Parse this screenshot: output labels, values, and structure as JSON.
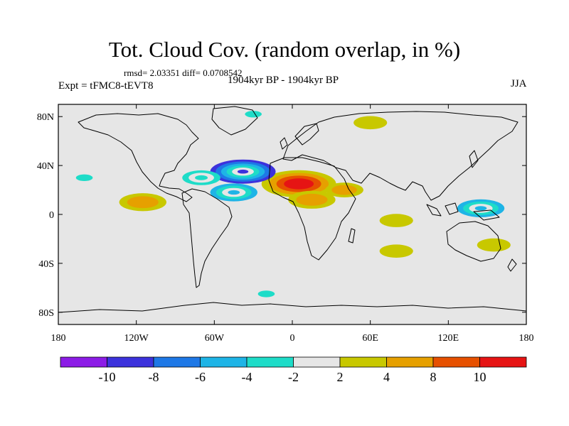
{
  "chart_data": {
    "type": "heatmap",
    "title": "Tot. Cloud Cov. (random overlap, in %)",
    "stats": "rmsd= 2.03351 diff= 0.0708542",
    "experiment": "Expt = tFMC8-tEVT8",
    "period": "1904kyr BP - 1904kyr BP",
    "season": "JJA",
    "projection": "cylindrical equidistant",
    "xlim": [
      -180,
      180
    ],
    "ylim": [
      -90,
      90
    ],
    "x_ticks": [
      {
        "lon": -180,
        "label": "180"
      },
      {
        "lon": -120,
        "label": "120W"
      },
      {
        "lon": -60,
        "label": "60W"
      },
      {
        "lon": 0,
        "label": "0"
      },
      {
        "lon": 60,
        "label": "60E"
      },
      {
        "lon": 120,
        "label": "120E"
      },
      {
        "lon": 180,
        "label": "180"
      }
    ],
    "y_ticks": [
      {
        "lat": 80,
        "label": "80N"
      },
      {
        "lat": 40,
        "label": "40N"
      },
      {
        "lat": 0,
        "label": "0"
      },
      {
        "lat": -40,
        "label": "40S"
      },
      {
        "lat": -80,
        "label": "80S"
      }
    ],
    "colorbar": {
      "bins": [
        {
          "range": "< -10",
          "color": "#8c1ce6"
        },
        {
          "range": "-10 to -8",
          "color": "#3c32dc"
        },
        {
          "range": "-8 to -6",
          "color": "#1e78e6"
        },
        {
          "range": "-6 to -4",
          "color": "#1eb4e6"
        },
        {
          "range": "-4 to -2",
          "color": "#1edcc8"
        },
        {
          "range": "-2 to 2",
          "color": "#e6e6e6"
        },
        {
          "range": "2 to 4",
          "color": "#c8c800"
        },
        {
          "range": "4 to 8",
          "color": "#e6a000"
        },
        {
          "range": "8 to 10",
          "color": "#e65000"
        },
        {
          "range": "> 10",
          "color": "#e61414"
        }
      ],
      "labels": [
        "-10",
        "-8",
        "-6",
        "-4",
        "-2",
        "2",
        "4",
        "8",
        "10"
      ]
    },
    "anomalies": [
      {
        "region": "North Africa / Sahara",
        "lon": 5,
        "lat": 25,
        "peak": 12,
        "sign": "positive"
      },
      {
        "region": "Central Sahel",
        "lon": 15,
        "lat": 12,
        "peak": 6,
        "sign": "positive"
      },
      {
        "region": "Arabia",
        "lon": 40,
        "lat": 20,
        "peak": 4,
        "sign": "positive"
      },
      {
        "region": "North Atlantic (subtropical)",
        "lon": -38,
        "lat": 35,
        "peak": -10,
        "sign": "negative"
      },
      {
        "region": "Central Atlantic",
        "lon": -45,
        "lat": 18,
        "peak": -6,
        "sign": "negative"
      },
      {
        "region": "Western Atlantic",
        "lon": -70,
        "lat": 30,
        "peak": -4,
        "sign": "negative"
      },
      {
        "region": "Eastern Tropical Pacific",
        "lon": -115,
        "lat": 10,
        "peak": 6,
        "sign": "positive"
      },
      {
        "region": "Central Pacific",
        "lon": -160,
        "lat": 30,
        "peak": -3,
        "sign": "negative"
      },
      {
        "region": "Western Pacific",
        "lon": 145,
        "lat": 5,
        "peak": -6,
        "sign": "negative"
      },
      {
        "region": "Indian Ocean",
        "lon": 80,
        "lat": -5,
        "peak": 3,
        "sign": "positive"
      },
      {
        "region": "Southern Indian Ocean",
        "lon": 80,
        "lat": -30,
        "peak": 3,
        "sign": "positive"
      },
      {
        "region": "Eastern Australia / Tasman",
        "lon": 155,
        "lat": -25,
        "peak": 3,
        "sign": "positive"
      },
      {
        "region": "Southern Ocean (Atlantic sector)",
        "lon": -20,
        "lat": -65,
        "peak": -3,
        "sign": "negative"
      },
      {
        "region": "Arctic",
        "lon": -30,
        "lat": 82,
        "peak": -3,
        "sign": "negative"
      },
      {
        "region": "Arctic Siberia",
        "lon": 60,
        "lat": 75,
        "peak": 3,
        "sign": "positive"
      }
    ]
  }
}
